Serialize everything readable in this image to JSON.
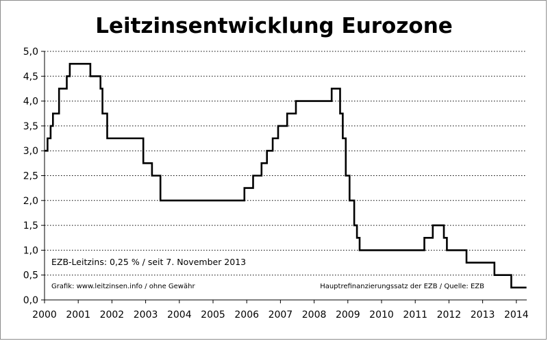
{
  "chart_data": {
    "type": "line",
    "title": "Leitzinsentwicklung Eurozone",
    "xlabel": "",
    "ylabel": "",
    "xlim": [
      2000,
      2014.3
    ],
    "ylim": [
      0,
      5
    ],
    "grid": true,
    "step": true,
    "x_ticks": [
      "2000",
      "2001",
      "2002",
      "2003",
      "2004",
      "2005",
      "2006",
      "2007",
      "2008",
      "2009",
      "2010",
      "2011",
      "2012",
      "2013",
      "2014"
    ],
    "y_ticks": [
      "0,0",
      "0,5",
      "1,0",
      "1,5",
      "2,0",
      "2,5",
      "3,0",
      "3,5",
      "4,0",
      "4,5",
      "5,0"
    ],
    "series": [
      {
        "values": [
          {
            "x": 2000.0,
            "y": 3.0
          },
          {
            "x": 2000.09,
            "y": 3.25
          },
          {
            "x": 2000.18,
            "y": 3.5
          },
          {
            "x": 2000.25,
            "y": 3.75
          },
          {
            "x": 2000.43,
            "y": 4.25
          },
          {
            "x": 2000.66,
            "y": 4.5
          },
          {
            "x": 2000.75,
            "y": 4.75
          },
          {
            "x": 2001.36,
            "y": 4.5
          },
          {
            "x": 2001.66,
            "y": 4.25
          },
          {
            "x": 2001.72,
            "y": 3.75
          },
          {
            "x": 2001.86,
            "y": 3.25
          },
          {
            "x": 2002.93,
            "y": 2.75
          },
          {
            "x": 2003.19,
            "y": 2.5
          },
          {
            "x": 2003.44,
            "y": 2.0
          },
          {
            "x": 2005.93,
            "y": 2.25
          },
          {
            "x": 2006.19,
            "y": 2.5
          },
          {
            "x": 2006.44,
            "y": 2.75
          },
          {
            "x": 2006.6,
            "y": 3.0
          },
          {
            "x": 2006.77,
            "y": 3.25
          },
          {
            "x": 2006.93,
            "y": 3.5
          },
          {
            "x": 2007.2,
            "y": 3.75
          },
          {
            "x": 2007.46,
            "y": 4.0
          },
          {
            "x": 2008.52,
            "y": 4.25
          },
          {
            "x": 2008.77,
            "y": 3.75
          },
          {
            "x": 2008.85,
            "y": 3.25
          },
          {
            "x": 2008.94,
            "y": 2.5
          },
          {
            "x": 2009.05,
            "y": 2.0
          },
          {
            "x": 2009.19,
            "y": 1.5
          },
          {
            "x": 2009.27,
            "y": 1.25
          },
          {
            "x": 2009.35,
            "y": 1.0
          },
          {
            "x": 2011.27,
            "y": 1.25
          },
          {
            "x": 2011.52,
            "y": 1.5
          },
          {
            "x": 2011.85,
            "y": 1.25
          },
          {
            "x": 2011.94,
            "y": 1.0
          },
          {
            "x": 2012.52,
            "y": 0.75
          },
          {
            "x": 2013.35,
            "y": 0.5
          },
          {
            "x": 2013.85,
            "y": 0.25
          },
          {
            "x": 2014.3,
            "y": 0.25
          }
        ]
      }
    ],
    "annotations": [
      "EZB-Leitzins: 0,25 % / seit 7. November 2013",
      "Grafik: www.leitzinsen.info / ohne Gewähr",
      "Hauptrefinanzierungssatz der EZB / Quelle: EZB"
    ],
    "colors": {
      "line": "#000000",
      "grid": "#000000",
      "frame": "#8c8c8c"
    }
  }
}
